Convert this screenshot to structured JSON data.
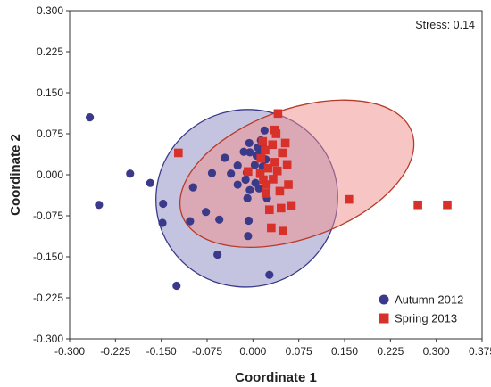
{
  "chart_data": {
    "type": "scatter",
    "title": "",
    "xlabel": "Coordinate 1",
    "ylabel": "Coordinate 2",
    "xlim": [
      -0.3,
      0.375
    ],
    "ylim": [
      -0.3,
      0.3
    ],
    "x_ticks": [
      "-0.300",
      "-0.225",
      "-0.150",
      "-0.075",
      "0.000",
      "0.075",
      "0.150",
      "0.225",
      "0.300",
      "0.375"
    ],
    "y_ticks": [
      "0.300",
      "0.225",
      "0.150",
      "0.075",
      "0.000",
      "-0.075",
      "-0.150",
      "-0.225",
      "-0.300"
    ],
    "grid": false,
    "legend_position": "bottom-right",
    "annotation": "Stress: 0.14",
    "series": [
      {
        "name": "Autumn 2012",
        "marker": "circle",
        "color": "#3b3a8a",
        "points": [
          [
            -0.267,
            0.105
          ],
          [
            -0.252,
            -0.055
          ],
          [
            -0.201,
            0.002
          ],
          [
            -0.168,
            -0.015
          ],
          [
            -0.148,
            -0.088
          ],
          [
            -0.147,
            -0.053
          ],
          [
            -0.125,
            -0.203
          ],
          [
            -0.103,
            -0.085
          ],
          [
            -0.098,
            -0.023
          ],
          [
            -0.077,
            -0.068
          ],
          [
            -0.067,
            0.003
          ],
          [
            -0.055,
            -0.082
          ],
          [
            -0.058,
            -0.146
          ],
          [
            -0.046,
            0.031
          ],
          [
            -0.036,
            0.002
          ],
          [
            -0.025,
            -0.018
          ],
          [
            -0.025,
            0.017
          ],
          [
            -0.015,
            0.042
          ],
          [
            -0.012,
            -0.009
          ],
          [
            -0.009,
            -0.043
          ],
          [
            -0.01,
            0.004
          ],
          [
            -0.006,
            0.058
          ],
          [
            -0.005,
            -0.028
          ],
          [
            -0.007,
            -0.084
          ],
          [
            -0.008,
            -0.112
          ],
          [
            0.003,
            0.018
          ],
          [
            0.006,
            0.035
          ],
          [
            0.008,
            0.05
          ],
          [
            0.011,
            0.042
          ],
          [
            0.013,
            0.063
          ],
          [
            0.014,
            0.038
          ],
          [
            0.016,
            0.015
          ],
          [
            0.017,
            0.049
          ],
          [
            0.019,
            0.081
          ],
          [
            0.021,
            0.028
          ],
          [
            0.004,
            -0.015
          ],
          [
            0.01,
            -0.025
          ],
          [
            0.023,
            -0.043
          ],
          [
            0.027,
            -0.183
          ],
          [
            -0.005,
            0.041
          ]
        ]
      },
      {
        "name": "Spring 2013",
        "marker": "square",
        "color": "#d8312a",
        "points": [
          [
            -0.122,
            0.04
          ],
          [
            -0.008,
            0.006
          ],
          [
            0.012,
            0.002
          ],
          [
            0.013,
            0.03
          ],
          [
            0.016,
            0.061
          ],
          [
            0.017,
            -0.009
          ],
          [
            0.02,
            0.045
          ],
          [
            0.021,
            -0.034
          ],
          [
            0.022,
            -0.018
          ],
          [
            0.025,
            0.012
          ],
          [
            0.027,
            -0.064
          ],
          [
            0.03,
            -0.097
          ],
          [
            0.032,
            0.055
          ],
          [
            0.033,
            -0.008
          ],
          [
            0.035,
            0.082
          ],
          [
            0.036,
            0.023
          ],
          [
            0.038,
            0.075
          ],
          [
            0.04,
            0.007
          ],
          [
            0.041,
            0.112
          ],
          [
            0.044,
            -0.03
          ],
          [
            0.046,
            -0.061
          ],
          [
            0.048,
            0.04
          ],
          [
            0.049,
            -0.103
          ],
          [
            0.053,
            0.058
          ],
          [
            0.056,
            0.019
          ],
          [
            0.058,
            -0.018
          ],
          [
            0.063,
            -0.056
          ],
          [
            0.157,
            -0.045
          ],
          [
            0.27,
            -0.055
          ],
          [
            0.318,
            -0.055
          ]
        ]
      }
    ],
    "ellipses": [
      {
        "series": "Autumn 2012",
        "fill": "#8a8ac2",
        "stroke": "#3b3a8a",
        "fill_opacity": 0.5,
        "center": [
          -0.01,
          -0.043
        ],
        "semi_axes": [
          0.149,
          0.162
        ],
        "rotation_deg": -15
      },
      {
        "series": "Spring 2013",
        "fill": "#f08d8a",
        "stroke": "#b83a2a",
        "fill_opacity": 0.5,
        "center": [
          0.072,
          0.002
        ],
        "semi_axes": [
          0.2,
          0.118
        ],
        "rotation_deg": -20
      }
    ]
  }
}
